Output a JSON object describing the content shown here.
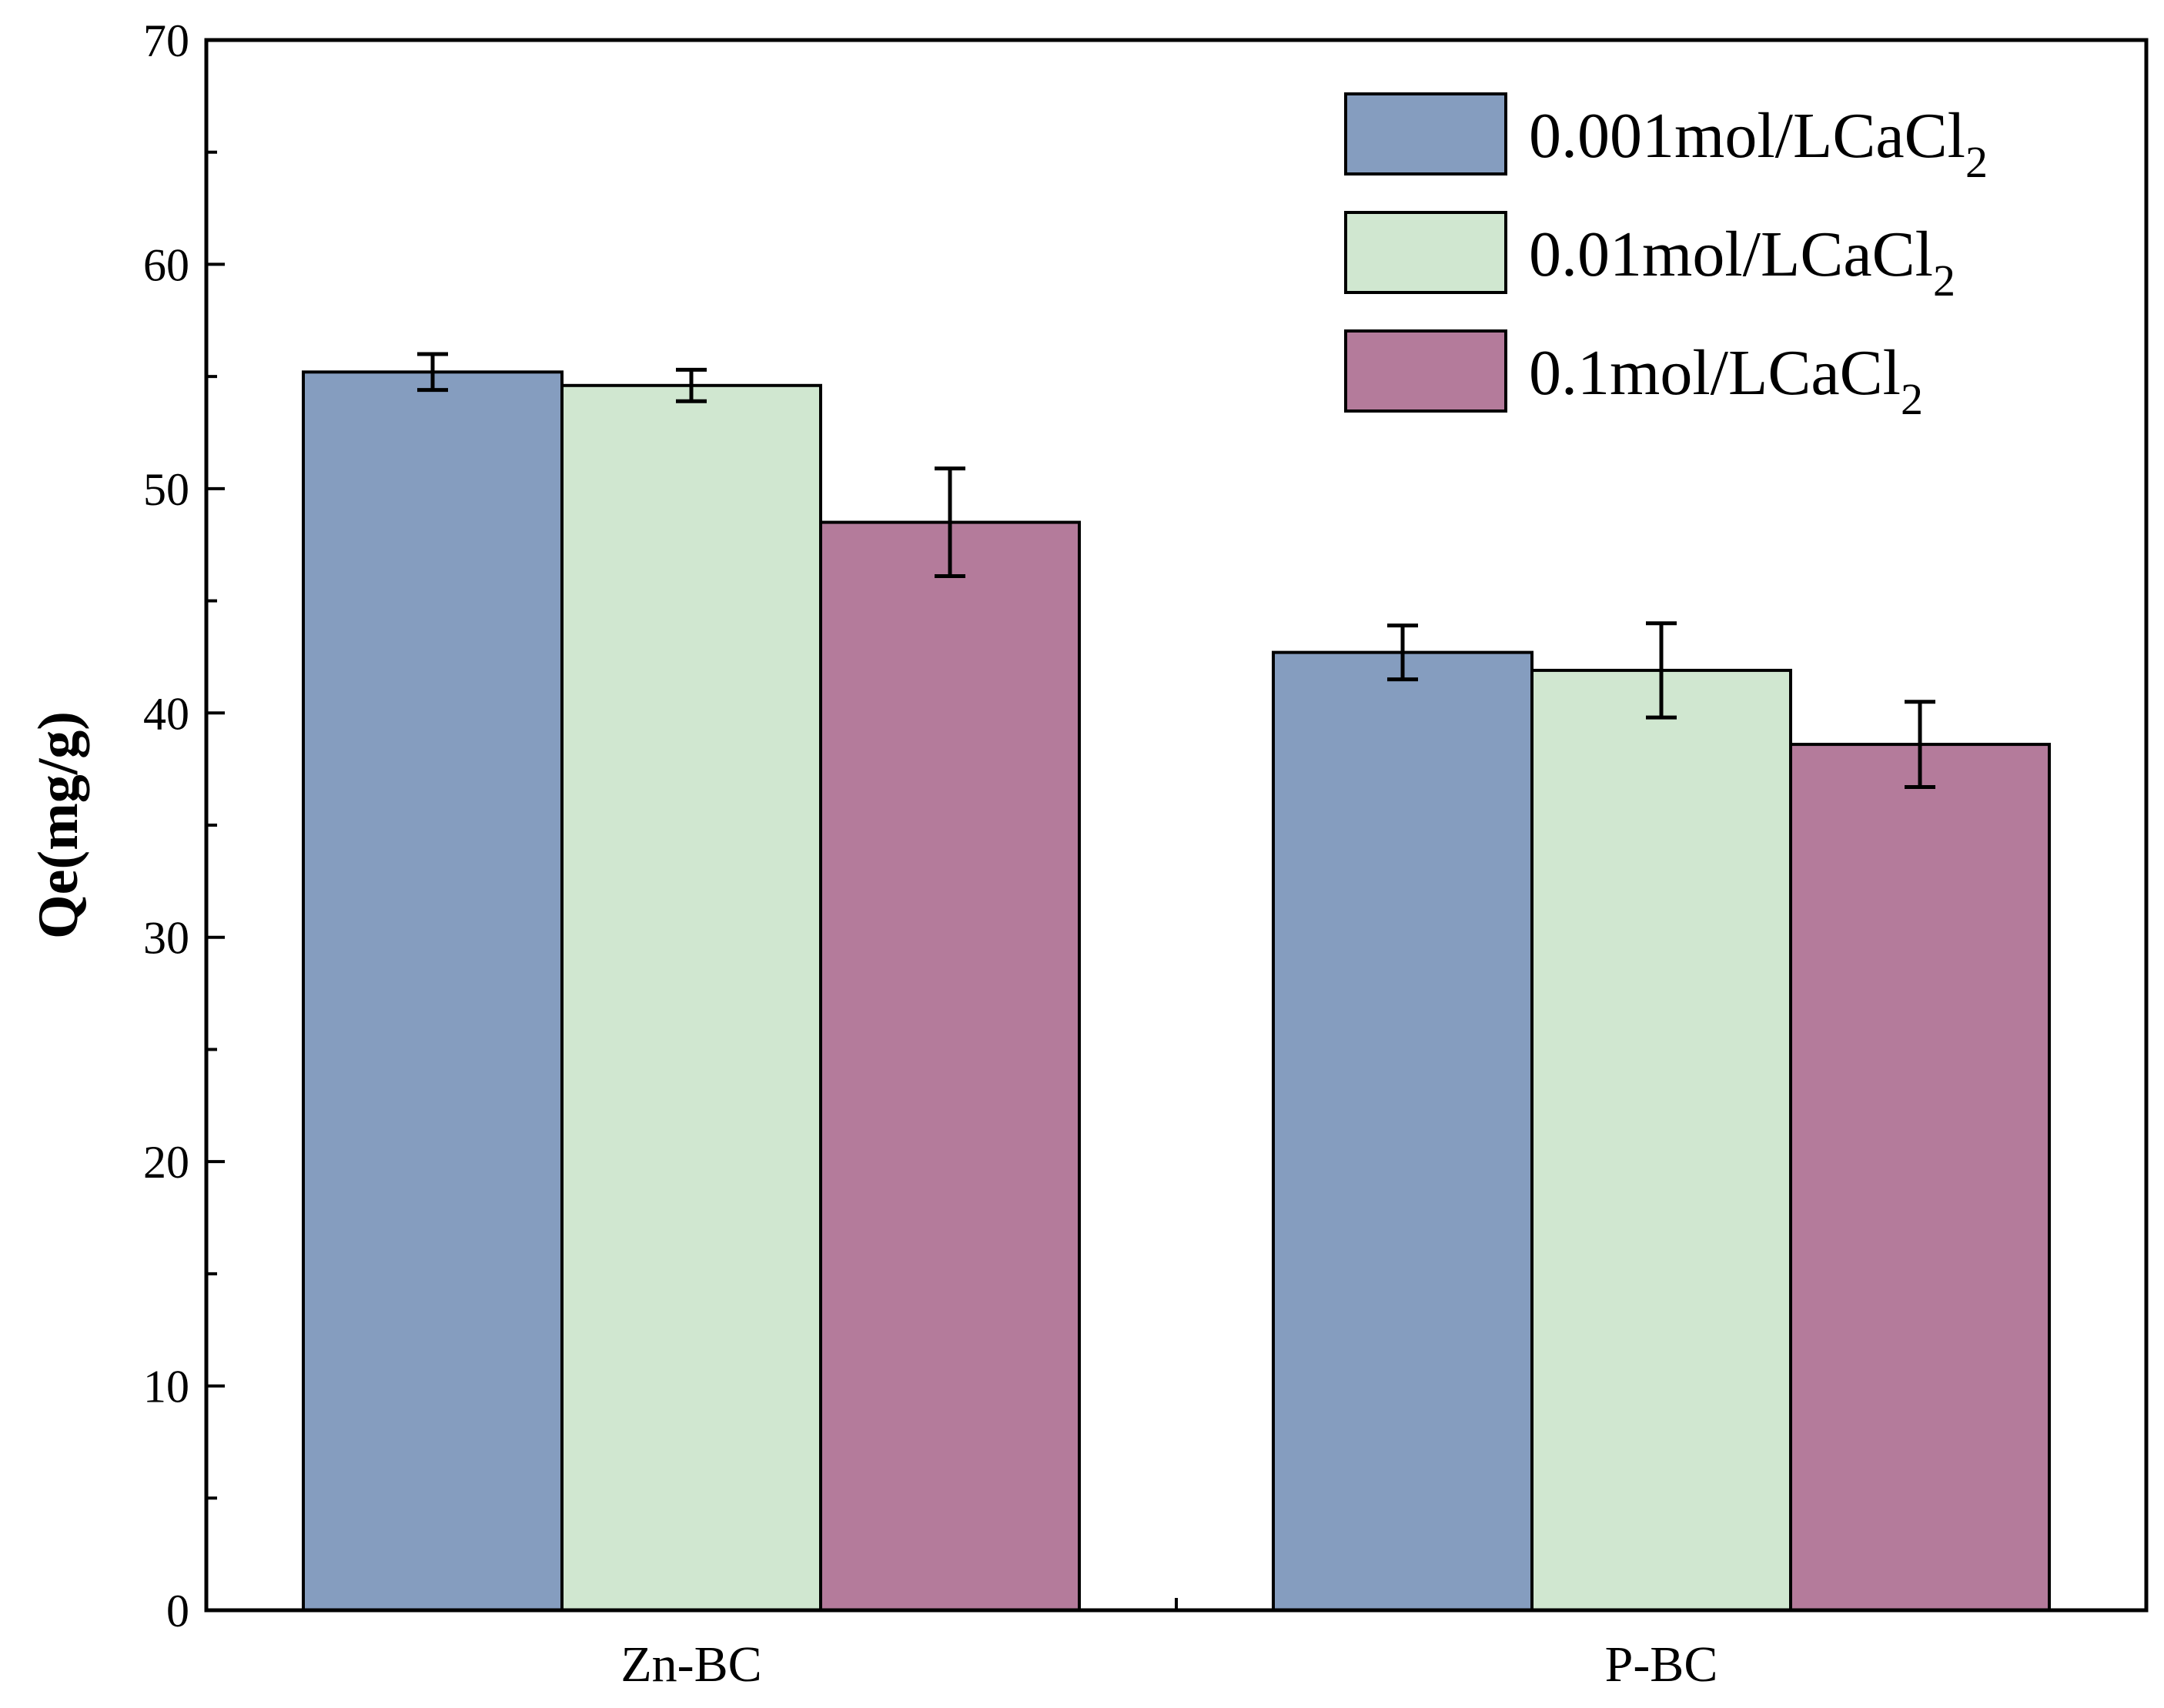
{
  "chart_data": {
    "type": "bar",
    "title": "",
    "xlabel": "",
    "ylabel": "Qe(mg/g)",
    "ylim": [
      0,
      70
    ],
    "yticks": [
      0,
      10,
      20,
      30,
      40,
      50,
      60,
      70
    ],
    "categories": [
      "Zn-BC",
      "P-BC"
    ],
    "legend_position": "top-right",
    "series": [
      {
        "name": "0.001mol/LCaCl",
        "subscript": "2",
        "color": "#859dbf",
        "values": [
          55.2,
          42.7
        ],
        "errors": [
          0.8,
          1.2
        ]
      },
      {
        "name": "0.01mol/LCaCl",
        "subscript": "2",
        "color": "#d0e7d0",
        "values": [
          54.6,
          41.9
        ],
        "errors": [
          0.7,
          2.1
        ]
      },
      {
        "name": "0.1mol/LCaCl",
        "subscript": "2",
        "color": "#b47b9b",
        "values": [
          48.5,
          38.6
        ],
        "errors": [
          2.4,
          1.9
        ]
      }
    ]
  }
}
